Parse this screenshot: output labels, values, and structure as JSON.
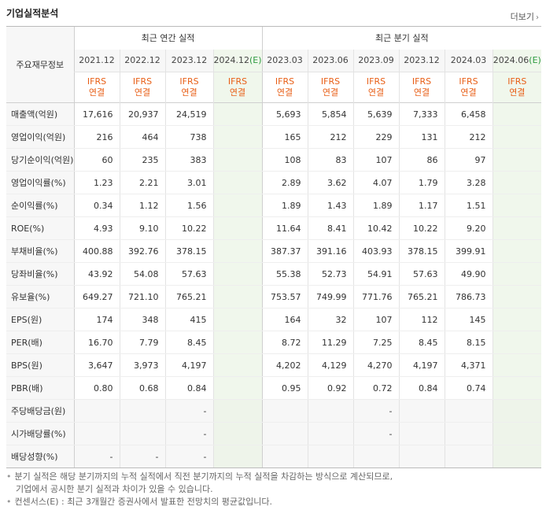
{
  "title": "기업실적분석",
  "more_label": "더보기",
  "header": {
    "row_label": "주요재무정보",
    "annual_group": "최근 연간 실적",
    "quarter_group": "최근 분기 실적",
    "annual_years": [
      "2021.12",
      "2022.12",
      "2023.12"
    ],
    "annual_est_year": "2024.12",
    "quarter_years": [
      "2023.03",
      "2023.06",
      "2023.09",
      "2023.12",
      "2024.03"
    ],
    "quarter_est_year": "2024.06",
    "est_mark": "(E)",
    "ifrs_line1": "IFRS",
    "ifrs_line2": "연결"
  },
  "rows": [
    {
      "label": "매출액(억원)",
      "annual": [
        "17,616",
        "20,937",
        "24,519",
        ""
      ],
      "quarter": [
        "5,693",
        "5,854",
        "5,639",
        "7,333",
        "6,458",
        ""
      ]
    },
    {
      "label": "영업이익(억원)",
      "annual": [
        "216",
        "464",
        "738",
        ""
      ],
      "quarter": [
        "165",
        "212",
        "229",
        "131",
        "212",
        ""
      ]
    },
    {
      "label": "당기순이익(억원)",
      "annual": [
        "60",
        "235",
        "383",
        ""
      ],
      "quarter": [
        "108",
        "83",
        "107",
        "86",
        "97",
        ""
      ]
    },
    {
      "label": "영업이익률(%)",
      "annual": [
        "1.23",
        "2.21",
        "3.01",
        ""
      ],
      "quarter": [
        "2.89",
        "3.62",
        "4.07",
        "1.79",
        "3.28",
        ""
      ]
    },
    {
      "label": "순이익률(%)",
      "annual": [
        "0.34",
        "1.12",
        "1.56",
        ""
      ],
      "quarter": [
        "1.89",
        "1.43",
        "1.89",
        "1.17",
        "1.51",
        ""
      ]
    },
    {
      "label": "ROE(%)",
      "annual": [
        "4.93",
        "9.10",
        "10.22",
        ""
      ],
      "quarter": [
        "11.64",
        "8.41",
        "10.42",
        "10.22",
        "9.20",
        ""
      ]
    },
    {
      "label": "부채비율(%)",
      "annual": [
        "400.88",
        "392.76",
        "378.15",
        ""
      ],
      "quarter": [
        "387.37",
        "391.16",
        "403.93",
        "378.15",
        "399.91",
        ""
      ]
    },
    {
      "label": "당좌비율(%)",
      "annual": [
        "43.92",
        "54.08",
        "57.63",
        ""
      ],
      "quarter": [
        "55.38",
        "52.73",
        "54.91",
        "57.63",
        "49.90",
        ""
      ]
    },
    {
      "label": "유보율(%)",
      "annual": [
        "649.27",
        "721.10",
        "765.21",
        ""
      ],
      "quarter": [
        "753.57",
        "749.99",
        "771.76",
        "765.21",
        "786.73",
        ""
      ]
    },
    {
      "label": "EPS(원)",
      "annual": [
        "174",
        "348",
        "415",
        ""
      ],
      "quarter": [
        "164",
        "32",
        "107",
        "112",
        "145",
        ""
      ]
    },
    {
      "label": "PER(배)",
      "annual": [
        "16.70",
        "7.79",
        "8.45",
        ""
      ],
      "quarter": [
        "8.72",
        "11.29",
        "7.25",
        "8.45",
        "8.15",
        ""
      ]
    },
    {
      "label": "BPS(원)",
      "annual": [
        "3,647",
        "3,973",
        "4,197",
        ""
      ],
      "quarter": [
        "4,202",
        "4,129",
        "4,270",
        "4,197",
        "4,371",
        ""
      ]
    },
    {
      "label": "PBR(배)",
      "annual": [
        "0.80",
        "0.68",
        "0.84",
        ""
      ],
      "quarter": [
        "0.95",
        "0.92",
        "0.72",
        "0.84",
        "0.74",
        ""
      ]
    },
    {
      "label": "주당배당금(원)",
      "annual": [
        "",
        "",
        "-",
        ""
      ],
      "quarter": [
        "",
        "",
        "-",
        "",
        "",
        ""
      ]
    },
    {
      "label": "시가배당률(%)",
      "annual": [
        "",
        "",
        "-",
        ""
      ],
      "quarter": [
        "",
        "",
        "-",
        "",
        "",
        ""
      ]
    },
    {
      "label": "배당성향(%)",
      "annual": [
        "-",
        "-",
        "-",
        ""
      ],
      "quarter": [
        "",
        "",
        "",
        "",
        "",
        ""
      ]
    }
  ],
  "notes": [
    "분기 실적은 해당 분기까지의 누적 실적에서 직전 분기까지의 누적 실적을 차감하는 방식으로 계산되므로,",
    "기업에서 공시한 분기 실적과 차이가 있을 수 있습니다.",
    "컨센서스(E) : 최근 3개월간 증권사에서 발표한 전망치의 평균값입니다."
  ]
}
